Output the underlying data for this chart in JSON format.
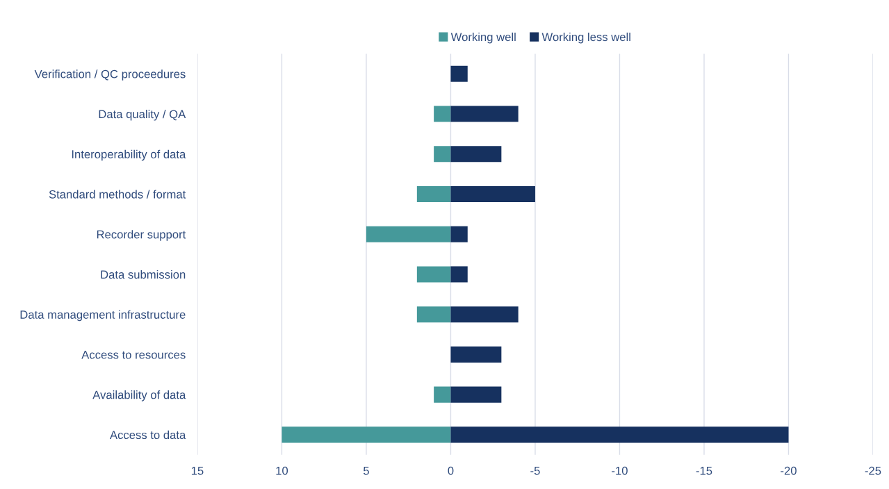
{
  "chart_data": {
    "type": "bar",
    "orientation": "horizontal",
    "stacked": true,
    "categories": [
      "Verification / QC proceedures",
      "Data quality / QA",
      "Interoperability of data",
      "Standard methods / format",
      "Recorder support",
      "Data submission",
      "Data management infrastructure",
      "Access to resources",
      "Availability of data",
      "Access to data"
    ],
    "series": [
      {
        "name": "Working well",
        "color": "#45999a",
        "values": [
          0,
          1,
          1,
          2,
          5,
          2,
          2,
          0,
          1,
          10
        ]
      },
      {
        "name": "Working less well",
        "color": "#16315f",
        "values": [
          -1,
          -4,
          -3,
          -5,
          -1,
          -1,
          -4,
          -3,
          -3,
          -20
        ]
      }
    ],
    "xlim": [
      15,
      -25
    ],
    "xticks": [
      15,
      10,
      5,
      0,
      -5,
      -10,
      -15,
      -20,
      -25
    ],
    "grid": "x",
    "legend": "top"
  }
}
